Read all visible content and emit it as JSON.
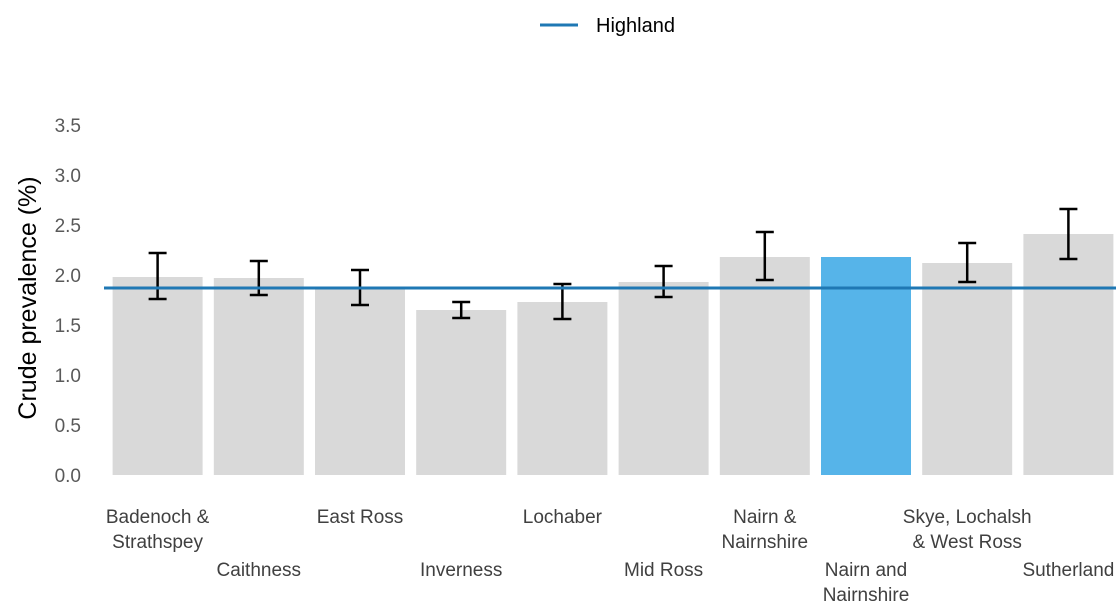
{
  "chart_data": {
    "type": "bar",
    "categories": [
      "Badenoch & Strathspey",
      "Caithness",
      "East Ross",
      "Inverness",
      "Lochaber",
      "Mid Ross",
      "Nairn & Nairnshire",
      "Nairn and Nairnshire",
      "Skye, Lochalsh & West Ross",
      "Sutherland"
    ],
    "category_label_lines": [
      [
        "Badenoch &",
        "Strathspey"
      ],
      [
        "Caithness"
      ],
      [
        "East Ross"
      ],
      [
        "Inverness"
      ],
      [
        "Lochaber"
      ],
      [
        "Mid Ross"
      ],
      [
        "Nairn &",
        "Nairnshire"
      ],
      [
        "Nairn and",
        "Nairnshire"
      ],
      [
        "Skye, Lochalsh",
        "& West Ross"
      ],
      [
        "Sutherland"
      ]
    ],
    "values": [
      1.98,
      1.97,
      1.87,
      1.65,
      1.73,
      1.93,
      2.18,
      2.18,
      2.12,
      2.41
    ],
    "ci_lower": [
      1.76,
      1.8,
      1.7,
      1.57,
      1.56,
      1.78,
      1.95,
      null,
      1.93,
      2.16
    ],
    "ci_upper": [
      2.22,
      2.14,
      2.05,
      1.73,
      1.91,
      2.09,
      2.43,
      null,
      2.32,
      2.66
    ],
    "highlight_index": 7,
    "reference_line": {
      "name": "Highland",
      "value": 1.87
    },
    "xlabel": "",
    "ylabel": "Crude prevalence (%)",
    "ylim": [
      0,
      3.5
    ],
    "yticks": [
      "0.0",
      "0.5",
      "1.0",
      "1.5",
      "2.0",
      "2.5",
      "3.0",
      "3.5"
    ],
    "grid": false,
    "legend_position": "top-center",
    "colors": {
      "bar": "#d9d9d9",
      "highlight": "#56b4e9",
      "reference_line": "#1f78b4",
      "error_bar": "#000000"
    }
  }
}
